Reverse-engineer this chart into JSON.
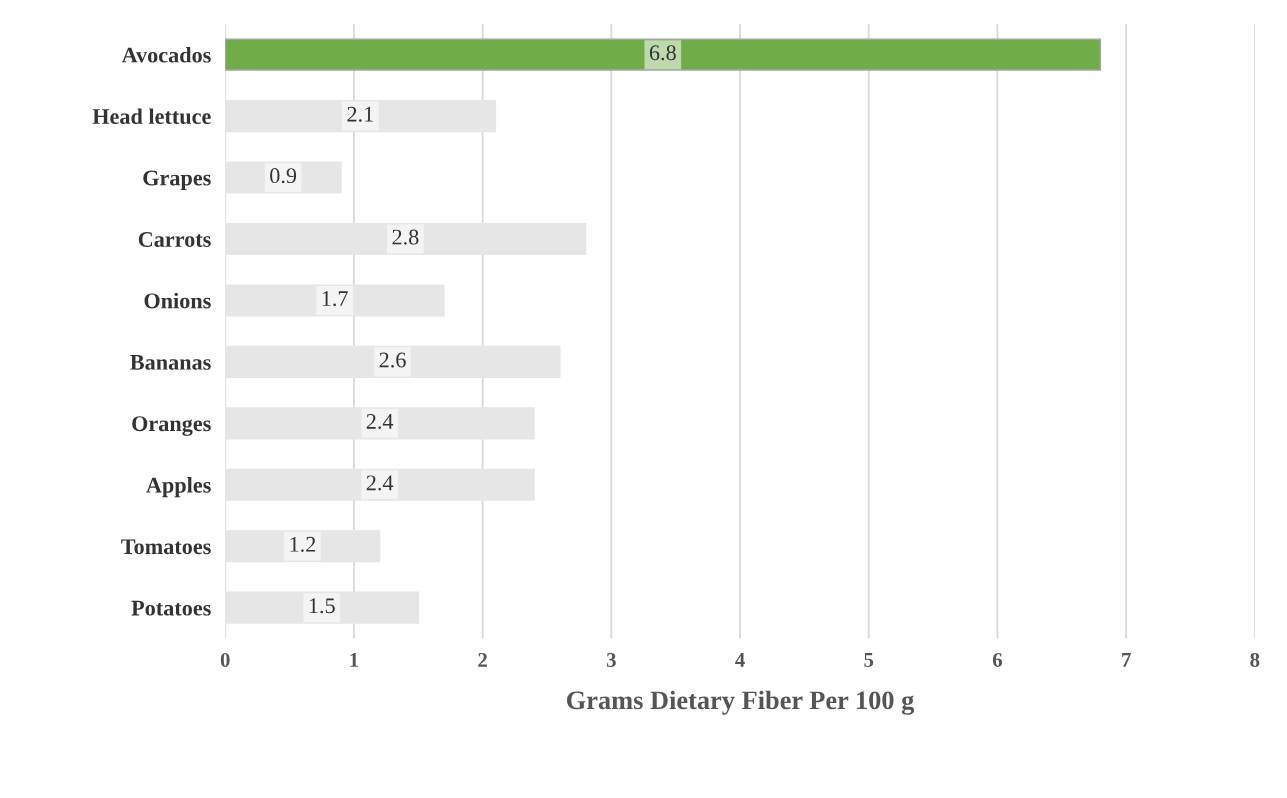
{
  "chart_data": {
    "type": "bar",
    "orientation": "horizontal",
    "xlabel": "Grams Dietary Fiber Per 100 g",
    "categories": [
      "Avocados",
      "Head lettuce",
      "Grapes",
      "Carrots",
      "Onions",
      "Bananas",
      "Oranges",
      "Apples",
      "Tomatoes",
      "Potatoes"
    ],
    "values": [
      6.8,
      2.1,
      0.9,
      2.8,
      1.7,
      2.6,
      2.4,
      2.4,
      1.2,
      1.5
    ],
    "colors": [
      "#70ad47",
      "#e7e6e6",
      "#e7e6e6",
      "#e7e6e6",
      "#e7e6e6",
      "#e7e6e6",
      "#e7e6e6",
      "#e7e6e6",
      "#e7e6e6",
      "#e7e6e6"
    ],
    "xlim": [
      0,
      8
    ],
    "xticks": [
      0,
      1,
      2,
      3,
      4,
      5,
      6,
      7,
      8
    ],
    "grid": "x",
    "data_labels": true
  }
}
